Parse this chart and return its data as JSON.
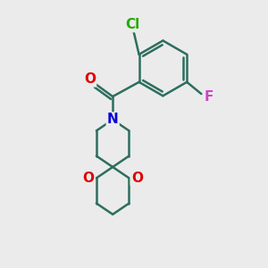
{
  "bg_color": "#ebebeb",
  "bond_color": "#2d6e5e",
  "bond_width": 1.8,
  "atom_colors": {
    "Cl": "#22aa00",
    "F": "#cc44cc",
    "O": "#dd0000",
    "N": "#0000dd"
  },
  "font_size": 11,
  "fig_size": [
    3.0,
    3.0
  ],
  "dpi": 100
}
